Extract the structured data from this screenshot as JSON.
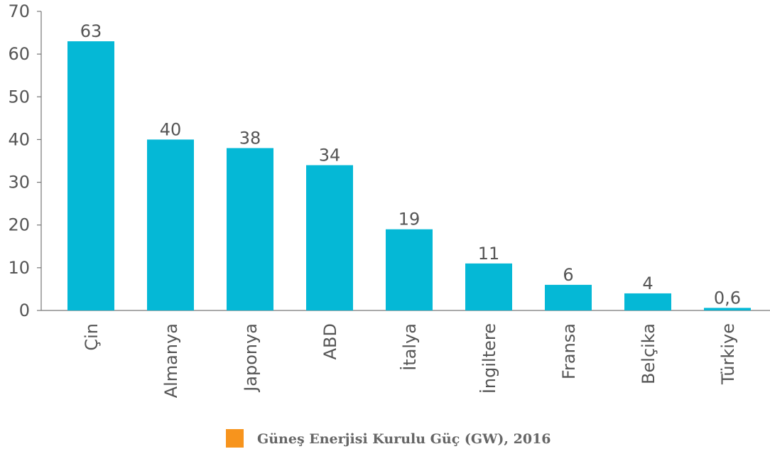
{
  "chart_data": {
    "type": "bar",
    "categories": [
      "Çin",
      "Almanya",
      "Japonya",
      "ABD",
      "İtalya",
      "İngiltere",
      "Fransa",
      "Belçika",
      "Türkiye"
    ],
    "series": [
      {
        "name": "Güneş Enerjisi Kurulu Güç (GW), 2016",
        "color": "#05b8d6",
        "legend_color": "#f7941d",
        "values": [
          63,
          40,
          38,
          34,
          19,
          11,
          6,
          4,
          0.6
        ],
        "value_labels": [
          "63",
          "40",
          "38",
          "34",
          "19",
          "11",
          "6",
          "4",
          "0,6"
        ]
      }
    ],
    "ylim": [
      0,
      70
    ],
    "yticks": [
      0,
      10,
      20,
      30,
      40,
      50,
      60,
      70
    ],
    "grid": false,
    "legend": "bottom"
  }
}
